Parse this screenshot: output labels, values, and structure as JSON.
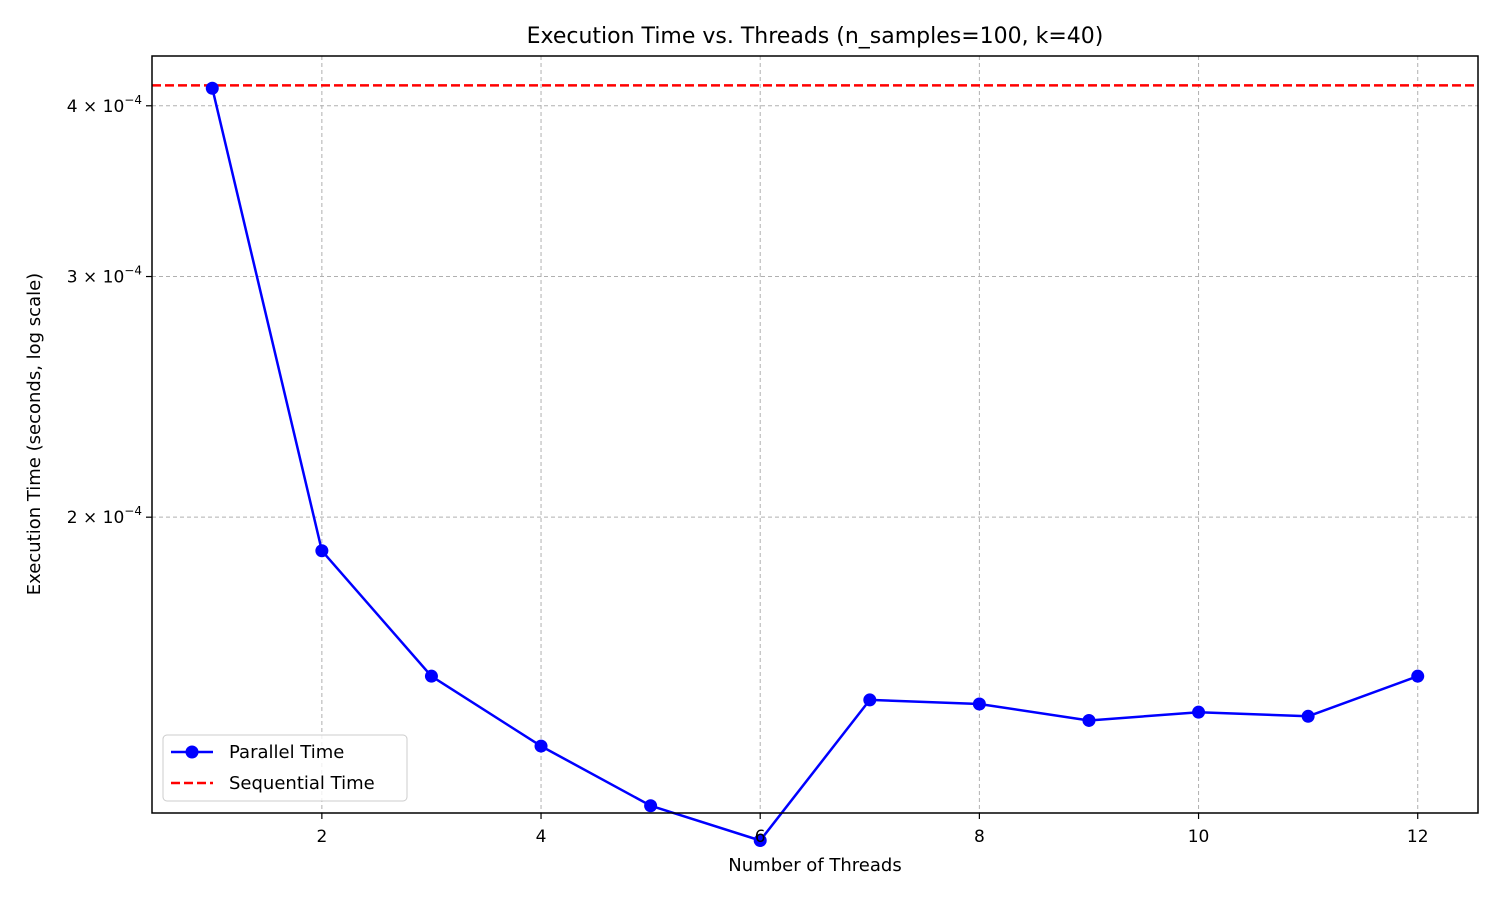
{
  "chart_data": {
    "type": "line",
    "title": "Execution Time vs. Threads (n_samples=100, k=40)",
    "xlabel": "Number of Threads",
    "ylabel": "Execution Time (seconds, log scale)",
    "yscale": "log",
    "xlim": [
      0.45,
      12.55
    ],
    "ylim": [
      0.0001215,
      0.000435
    ],
    "grid": true,
    "legend_position": "lower-left",
    "x_ticks": [
      2,
      4,
      6,
      8,
      10,
      12
    ],
    "x_tick_labels": [
      "2",
      "4",
      "6",
      "8",
      "10",
      "12"
    ],
    "y_ticks": [
      {
        "value": 0.0002,
        "mantissa": "2",
        "exponent": "−4"
      },
      {
        "value": 0.0003,
        "mantissa": "3",
        "exponent": "−4"
      },
      {
        "value": 0.0004,
        "mantissa": "4",
        "exponent": "−4"
      }
    ],
    "series": [
      {
        "name": "Parallel Time",
        "style": "solid-marker",
        "color": "#0000ff",
        "x": [
          1,
          2,
          3,
          4,
          5,
          6,
          7,
          8,
          9,
          10,
          11,
          12
        ],
        "values": [
          0.000412,
          0.000189,
          0.000153,
          0.000136,
          0.000123,
          0.000116,
          0.000147,
          0.000146,
          0.000142,
          0.000144,
          0.000143,
          0.000153
        ]
      },
      {
        "name": "Sequential Time",
        "style": "dashed-hline",
        "color": "#ff0000",
        "value": 0.000414
      }
    ]
  },
  "colors": {
    "grid": "#b0b0b0",
    "axes": "#000000",
    "background": "#ffffff"
  }
}
